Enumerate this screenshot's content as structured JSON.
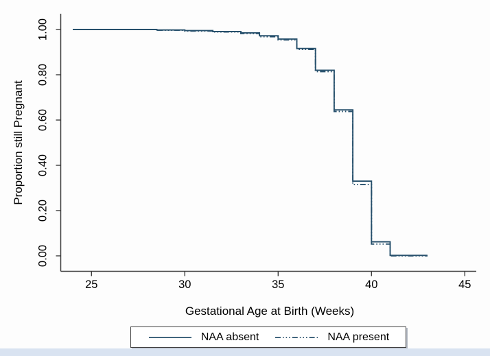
{
  "figure": {
    "background_color": "#fdfdfd",
    "bottom_bar_color": "#d9e3f1",
    "axis_color": "#3c3c3c",
    "text_color": "#000000"
  },
  "chart_data": {
    "type": "line",
    "subtype": "kaplan-meier-step-survival",
    "title": "",
    "xlabel": "Gestational Age at Birth (Weeks)",
    "ylabel": "Proportion still Pregnant",
    "xlim": [
      23.3,
      45.6
    ],
    "ylim": [
      0,
      1
    ],
    "grid": false,
    "x_ticks": [
      {
        "label": "25",
        "value": 25
      },
      {
        "label": "30",
        "value": 30
      },
      {
        "label": "35",
        "value": 35
      },
      {
        "label": "40",
        "value": 40
      },
      {
        "label": "45",
        "value": 45
      }
    ],
    "y_ticks": [
      {
        "label": "0.00",
        "value": 0.0
      },
      {
        "label": "0.20",
        "value": 0.2
      },
      {
        "label": "0.40",
        "value": 0.4
      },
      {
        "label": "0.60",
        "value": 0.6
      },
      {
        "label": "0.80",
        "value": 0.8
      },
      {
        "label": "1.00",
        "value": 1.0
      }
    ],
    "legend_position": "bottom-center",
    "series": [
      {
        "name": "NAA absent",
        "style": "solid",
        "color": "#27506c",
        "step": true,
        "x": [
          24,
          28.5,
          30,
          31.5,
          33,
          34,
          35,
          36,
          37,
          38,
          39,
          40,
          41,
          43
        ],
        "y": [
          1.0,
          0.998,
          0.995,
          0.991,
          0.985,
          0.972,
          0.958,
          0.916,
          0.82,
          0.645,
          0.33,
          0.062,
          0.002,
          0.002
        ]
      },
      {
        "name": "NAA present",
        "style": "dash-dot-dot",
        "color": "#27506c",
        "step": true,
        "x": [
          24,
          28.5,
          30,
          31.5,
          33,
          34,
          35,
          36,
          37,
          38,
          39,
          40,
          41,
          43
        ],
        "y": [
          1.0,
          0.997,
          0.993,
          0.989,
          0.982,
          0.968,
          0.954,
          0.912,
          0.814,
          0.638,
          0.315,
          0.052,
          0.0,
          0.0
        ]
      }
    ]
  }
}
